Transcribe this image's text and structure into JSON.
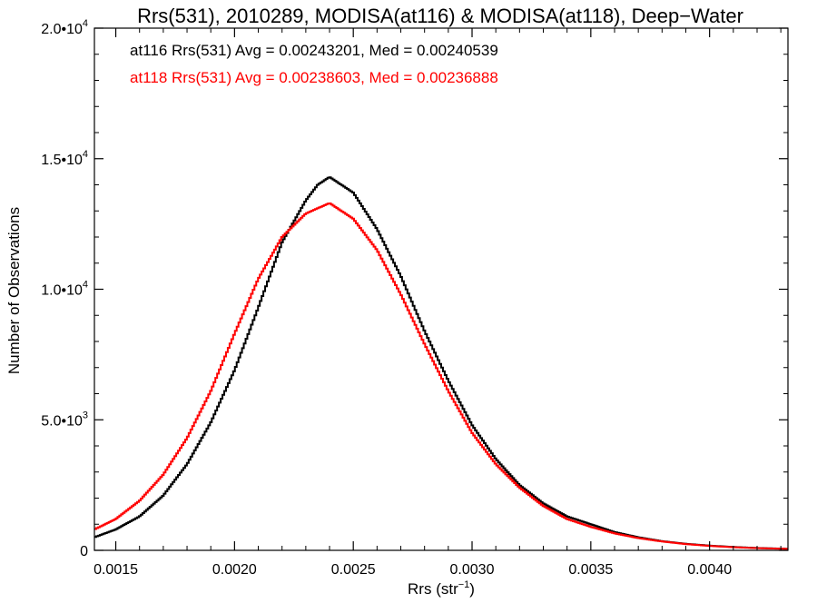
{
  "chart_data": {
    "type": "line",
    "title": "Rrs(531), 2010289, MODISA(at116) & MODISA(at118), Deep−Water",
    "xlabel": "Rrs (str",
    "xlabel_sup": "−1",
    "xlabel_close": ")",
    "ylabel": "Number of Observations",
    "xlim": [
      0.00141,
      0.00433
    ],
    "ylim": [
      0,
      20000
    ],
    "grid": false,
    "xticks": [
      {
        "value": 0.0015,
        "label": "0.0015"
      },
      {
        "value": 0.002,
        "label": "0.0020"
      },
      {
        "value": 0.0025,
        "label": "0.0025"
      },
      {
        "value": 0.003,
        "label": "0.0030"
      },
      {
        "value": 0.0035,
        "label": "0.0035"
      },
      {
        "value": 0.004,
        "label": "0.0040"
      }
    ],
    "yticks": [
      {
        "value": 0,
        "base": "0",
        "exp": ""
      },
      {
        "value": 5000,
        "base": "5.0•10",
        "exp": "3"
      },
      {
        "value": 10000,
        "base": "1.0•10",
        "exp": "4"
      },
      {
        "value": 15000,
        "base": "1.5•10",
        "exp": "4"
      },
      {
        "value": 20000,
        "base": "2.0•10",
        "exp": "4"
      }
    ],
    "annotations": [
      {
        "text": "at116 Rrs(531) Avg = 0.00243201, Med = 0.00240539",
        "color": "#000000"
      },
      {
        "text": "at118 Rrs(531) Avg = 0.00238603, Med = 0.00236888",
        "color": "#ff0000"
      }
    ],
    "series": [
      {
        "color": "#000000",
        "x": [
          0.00141,
          0.0015,
          0.0016,
          0.0017,
          0.0018,
          0.0019,
          0.002,
          0.0021,
          0.0022,
          0.0023,
          0.00235,
          0.0024,
          0.0025,
          0.0026,
          0.0027,
          0.0028,
          0.0029,
          0.003,
          0.0031,
          0.0032,
          0.0033,
          0.0034,
          0.0035,
          0.0036,
          0.0037,
          0.0038,
          0.0039,
          0.004,
          0.0041,
          0.0042,
          0.00433
        ],
        "y": [
          500,
          800,
          1300,
          2100,
          3300,
          4900,
          6900,
          9300,
          11800,
          13400,
          14000,
          14300,
          13700,
          12300,
          10500,
          8400,
          6500,
          4800,
          3500,
          2500,
          1800,
          1300,
          1000,
          700,
          500,
          350,
          250,
          180,
          130,
          90,
          60
        ]
      },
      {
        "color": "#ff0000",
        "x": [
          0.00141,
          0.0015,
          0.0016,
          0.0017,
          0.0018,
          0.0019,
          0.002,
          0.0021,
          0.0022,
          0.0023,
          0.00235,
          0.0024,
          0.0025,
          0.0026,
          0.0027,
          0.0028,
          0.0029,
          0.003,
          0.0031,
          0.0032,
          0.0033,
          0.0034,
          0.0035,
          0.0036,
          0.0037,
          0.0038,
          0.0039,
          0.004,
          0.0041,
          0.0042,
          0.00433
        ],
        "y": [
          800,
          1200,
          1900,
          2900,
          4300,
          6100,
          8300,
          10400,
          12000,
          12900,
          13100,
          13300,
          12700,
          11500,
          9800,
          7900,
          6100,
          4500,
          3300,
          2400,
          1700,
          1200,
          900,
          650,
          470,
          340,
          240,
          170,
          120,
          85,
          55
        ]
      }
    ]
  }
}
